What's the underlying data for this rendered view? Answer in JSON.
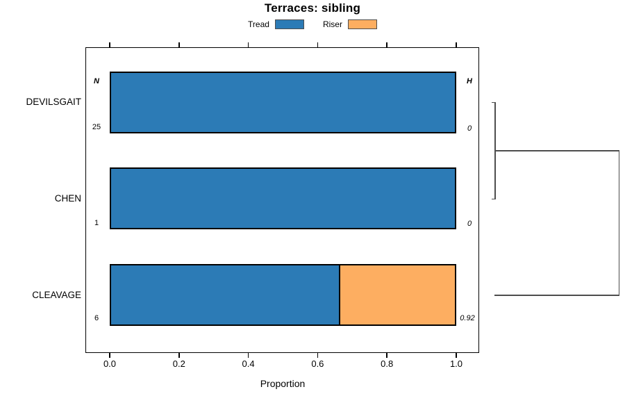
{
  "chart_data": {
    "type": "bar",
    "subtype": "horizontal-stacked-normalized",
    "title": "Terraces: sibling",
    "xlabel": "Proportion",
    "xlim": [
      0,
      1
    ],
    "x_ticks": [
      "0.0",
      "0.2",
      "0.4",
      "0.6",
      "0.8",
      "1.0"
    ],
    "grid": "off",
    "legend_position": "top-center",
    "categories": [
      "DEVILSGAIT",
      "CHEN",
      "CLEAVAGE"
    ],
    "series": [
      {
        "name": "Tread",
        "color": "#2c7bb6",
        "values": [
          1.0,
          1.0,
          0.667
        ]
      },
      {
        "name": "Riser",
        "color": "#fdae61",
        "values": [
          0.0,
          0.0,
          0.333
        ]
      }
    ],
    "n_header": "N",
    "h_header": "H",
    "n_values": [
      "25",
      "1",
      "6"
    ],
    "h_values": [
      "0",
      "0",
      "0.92"
    ],
    "dendrogram": {
      "side": "right",
      "merges": [
        {
          "members": [
            "DEVILSGAIT",
            "CHEN"
          ],
          "relative_height": 0.0
        },
        {
          "members": [
            "DEVILSGAIT+CHEN",
            "CLEAVAGE"
          ],
          "relative_height": 1.0
        }
      ]
    },
    "colors": {
      "tread": "#2c7bb6",
      "riser": "#fdae61",
      "bar_border": "#000000",
      "axis": "#000000",
      "dendrogram_line": "#4d4d4d"
    }
  }
}
